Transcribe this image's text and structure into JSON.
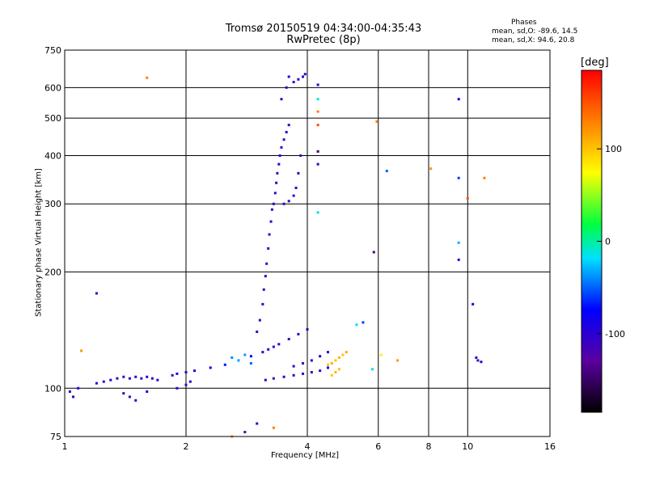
{
  "title_line1": "Tromsø 20150519 04:34:00-04:35:43",
  "title_line2": "RwPretec (8p)",
  "phases": {
    "heading": "Phases",
    "o_stats": "mean, sd,O:  -89.6,  14.5",
    "x_stats": "mean, sd,X:   94.6,  20.8"
  },
  "colorbar": {
    "unit_label": "[deg]",
    "ticks": [
      {
        "value": 100,
        "label": "100"
      },
      {
        "value": 0,
        "label": "0"
      },
      {
        "value": -100,
        "label": "-100"
      }
    ],
    "range": [
      -185,
      185
    ]
  },
  "chart_data": {
    "type": "scatter",
    "title": "Tromsø 20150519 04:34:00-04:35:43",
    "subtitle": "RwPretec (8p)",
    "xlabel": "Frequency [MHz]",
    "ylabel": "Stationary phase Virtual Height [km]",
    "x_scale": "log",
    "y_scale": "log",
    "xlim": [
      1,
      16
    ],
    "ylim": [
      75,
      750
    ],
    "grid": true,
    "x_ticks": [
      {
        "value": 1,
        "label": "1"
      },
      {
        "value": 2,
        "label": "2"
      },
      {
        "value": 4,
        "label": "4"
      },
      {
        "value": 6,
        "label": "6"
      },
      {
        "value": 8,
        "label": "8"
      },
      {
        "value": 10,
        "label": "10"
      },
      {
        "value": 16,
        "label": "16"
      }
    ],
    "y_ticks": [
      {
        "value": 75,
        "label": "75"
      },
      {
        "value": 100,
        "label": "100"
      },
      {
        "value": 200,
        "label": "200"
      },
      {
        "value": 300,
        "label": "300"
      },
      {
        "value": 400,
        "label": "400"
      },
      {
        "value": 500,
        "label": "500"
      },
      {
        "value": 600,
        "label": "600"
      },
      {
        "value": 750,
        "label": "750"
      }
    ],
    "series": [
      {
        "points": [
          [
            1.03,
            98,
            -110
          ],
          [
            1.05,
            95,
            -105
          ],
          [
            1.08,
            100,
            -95
          ],
          [
            1.2,
            103,
            -100
          ],
          [
            1.25,
            104,
            -110
          ],
          [
            1.3,
            105,
            -105
          ],
          [
            1.35,
            106,
            -100
          ],
          [
            1.4,
            107,
            -110
          ],
          [
            1.45,
            106,
            -100
          ],
          [
            1.5,
            107,
            -105
          ],
          [
            1.55,
            106,
            -110
          ],
          [
            1.6,
            107,
            -100
          ],
          [
            1.65,
            106,
            -105
          ],
          [
            1.7,
            105,
            -110
          ],
          [
            1.85,
            108,
            -100
          ],
          [
            1.9,
            109,
            -90
          ],
          [
            2.0,
            110,
            -100
          ],
          [
            2.1,
            111,
            -85
          ],
          [
            2.3,
            113,
            -80
          ],
          [
            2.5,
            115,
            -70
          ],
          [
            2.7,
            118,
            -65
          ],
          [
            2.9,
            121,
            -75
          ],
          [
            3.1,
            124,
            -95
          ],
          [
            3.2,
            126,
            -100
          ],
          [
            3.3,
            128,
            -105
          ],
          [
            1.4,
            97,
            -100
          ],
          [
            1.45,
            95,
            -110
          ],
          [
            1.5,
            93,
            -105
          ],
          [
            1.6,
            98,
            -95
          ],
          [
            1.9,
            100,
            -100
          ],
          [
            2.0,
            102,
            -110
          ],
          [
            2.05,
            104,
            -100
          ],
          [
            3.15,
            105,
            -100
          ],
          [
            3.3,
            106,
            -110
          ],
          [
            3.5,
            107,
            -100
          ],
          [
            3.7,
            108,
            -105
          ],
          [
            3.9,
            109,
            -100
          ],
          [
            4.1,
            110,
            -110
          ],
          [
            4.3,
            111,
            -100
          ],
          [
            4.5,
            113,
            -95
          ],
          [
            3.7,
            114,
            -100
          ],
          [
            3.9,
            116,
            -110
          ],
          [
            4.1,
            118,
            -100
          ],
          [
            4.3,
            121,
            -95
          ],
          [
            4.5,
            124,
            -100
          ],
          [
            3.4,
            130,
            -100
          ],
          [
            3.6,
            134,
            -110
          ],
          [
            3.8,
            138,
            -100
          ],
          [
            4.0,
            142,
            -95
          ],
          [
            3.0,
            140,
            -100
          ],
          [
            3.05,
            150,
            -110
          ],
          [
            3.1,
            165,
            -100
          ],
          [
            3.12,
            180,
            -105
          ],
          [
            3.15,
            195,
            -100
          ],
          [
            3.17,
            210,
            -110
          ],
          [
            3.2,
            230,
            -100
          ],
          [
            3.22,
            250,
            -105
          ],
          [
            3.25,
            270,
            -100
          ],
          [
            3.27,
            290,
            -110
          ],
          [
            3.3,
            300,
            -100
          ],
          [
            3.33,
            320,
            -105
          ],
          [
            3.35,
            340,
            -100
          ],
          [
            3.37,
            360,
            -110
          ],
          [
            3.4,
            380,
            -100
          ],
          [
            3.42,
            400,
            -105
          ],
          [
            3.45,
            420,
            -100
          ],
          [
            3.5,
            440,
            -110
          ],
          [
            3.55,
            460,
            -100
          ],
          [
            3.6,
            480,
            -105
          ],
          [
            3.5,
            300,
            -100
          ],
          [
            3.6,
            305,
            -110
          ],
          [
            3.7,
            315,
            -100
          ],
          [
            3.75,
            330,
            -105
          ],
          [
            3.8,
            360,
            -100
          ],
          [
            3.85,
            400,
            -110
          ],
          [
            3.45,
            560,
            -100
          ],
          [
            3.55,
            600,
            -105
          ],
          [
            3.6,
            640,
            -100
          ],
          [
            3.7,
            620,
            -110
          ],
          [
            3.8,
            630,
            -100
          ],
          [
            3.9,
            640,
            -105
          ],
          [
            3.95,
            650,
            -100
          ],
          [
            4.5,
            115,
            100
          ],
          [
            4.6,
            116,
            110
          ],
          [
            4.7,
            118,
            100
          ],
          [
            4.8,
            120,
            105
          ],
          [
            4.9,
            122,
            100
          ],
          [
            5.0,
            124,
            110
          ],
          [
            4.6,
            108,
            100
          ],
          [
            4.7,
            110,
            105
          ],
          [
            4.8,
            112,
            100
          ],
          [
            2.6,
            120,
            -40
          ],
          [
            2.7,
            118,
            -30
          ],
          [
            2.8,
            122,
            -35
          ],
          [
            2.9,
            116,
            -50
          ],
          [
            5.3,
            146,
            -20
          ],
          [
            5.5,
            148,
            -60
          ],
          [
            1.2,
            176,
            -110
          ],
          [
            1.1,
            125,
            120
          ],
          [
            1.6,
            636,
            130
          ],
          [
            4.25,
            610,
            -100
          ],
          [
            4.25,
            560,
            -10
          ],
          [
            4.25,
            520,
            130
          ],
          [
            4.25,
            480,
            150
          ],
          [
            4.25,
            380,
            -100
          ],
          [
            4.25,
            410,
            -150
          ],
          [
            4.25,
            285,
            -20
          ],
          [
            5.85,
            225,
            -140
          ],
          [
            5.95,
            490,
            130
          ],
          [
            6.3,
            365,
            -50
          ],
          [
            8.1,
            370,
            120
          ],
          [
            9.5,
            560,
            -80
          ],
          [
            9.5,
            350,
            -60
          ],
          [
            9.5,
            238,
            -30
          ],
          [
            9.5,
            215,
            -90
          ],
          [
            10.3,
            165,
            -95
          ],
          [
            10.5,
            120,
            -100
          ],
          [
            10.6,
            118,
            -110
          ],
          [
            10.8,
            117,
            -100
          ],
          [
            11.0,
            350,
            130
          ],
          [
            10.0,
            310,
            150
          ],
          [
            6.1,
            122,
            80
          ],
          [
            5.8,
            112,
            -20
          ],
          [
            6.7,
            118,
            120
          ],
          [
            3.0,
            81,
            -110
          ],
          [
            3.3,
            79,
            130
          ],
          [
            2.6,
            75,
            120
          ],
          [
            2.8,
            77,
            -120
          ]
        ]
      }
    ]
  }
}
